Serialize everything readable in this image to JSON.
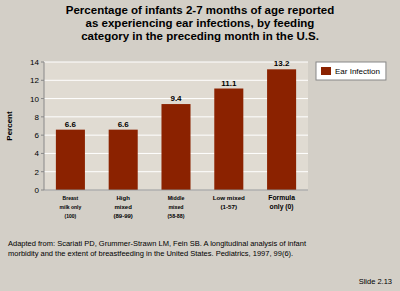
{
  "chart_data": {
    "type": "bar",
    "title": "Percentage of infants 2-7 months of age reported\nas experiencing ear infections, by feeding\ncategory in the preceding month in the U.S.",
    "categories": [
      "Breast\nmilk only\n(100)",
      "High\nmixed\n(89-99)",
      "Middle\nmixed\n(58-88)",
      "Low mixed\n(1-57)",
      "Formula\nonly (0)"
    ],
    "series": [
      {
        "name": "Ear Infection",
        "color": "#8B2200",
        "values": [
          6.6,
          6.6,
          9.4,
          11.1,
          13.2
        ]
      }
    ],
    "y_label": "Percent",
    "ylim": [
      0,
      14
    ],
    "yticks": [
      0,
      2,
      4,
      6,
      8,
      10,
      12,
      14
    ],
    "grid": true,
    "legend": "right",
    "data_labels": true,
    "annotations": [
      "Adapted from: Scariati PD, Grummer-Strawn LM, Fein SB. A longitudinal analysis of infant",
      "morbidity and the extent of breastfeeding in the United States. Pediatrics, 1997, 99(6).",
      "Slide 2.13"
    ]
  }
}
